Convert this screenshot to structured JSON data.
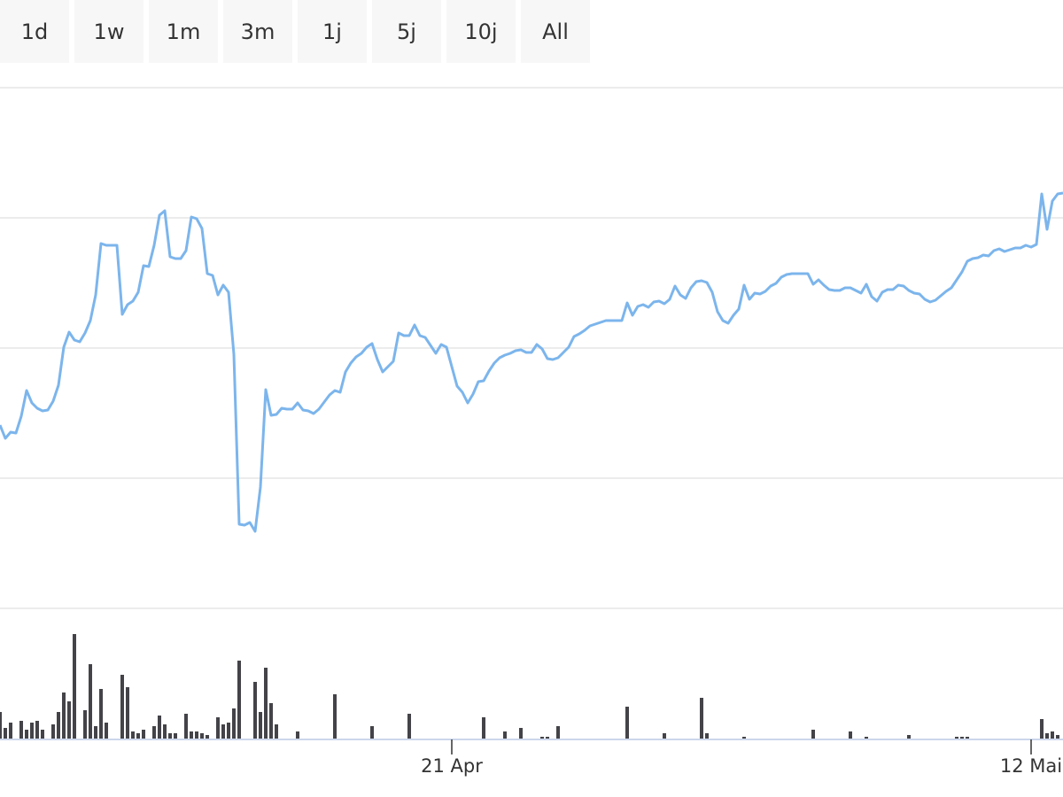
{
  "range_buttons": [
    "1d",
    "1w",
    "1m",
    "3m",
    "1j",
    "5j",
    "10j",
    "All"
  ],
  "chart_data": {
    "type": "line",
    "categories": [
      null,
      null,
      null,
      null,
      null,
      null,
      null,
      null,
      null,
      null,
      null,
      null,
      null,
      null,
      null,
      null,
      null,
      null,
      null,
      null,
      null,
      null,
      null,
      null,
      null,
      null,
      null,
      null,
      null,
      null,
      null,
      null,
      null,
      null,
      null,
      null,
      null,
      null,
      null,
      null,
      null,
      null,
      null,
      null,
      null,
      null,
      null,
      null,
      null,
      null,
      null,
      null,
      null,
      null,
      null,
      null,
      null,
      null,
      null,
      null,
      null,
      null,
      null,
      null,
      null,
      null,
      null,
      null,
      null,
      null,
      null,
      null,
      null,
      null,
      null,
      null,
      null,
      null,
      null,
      null,
      null,
      null,
      null,
      null,
      null,
      "21 Apr",
      null,
      null,
      null,
      null,
      null,
      null,
      null,
      null,
      null,
      null,
      null,
      null,
      null,
      null,
      null,
      null,
      null,
      null,
      null,
      null,
      null,
      null,
      null,
      null,
      null,
      null,
      null,
      null,
      null,
      null,
      null,
      null,
      null,
      null,
      null,
      null,
      null,
      null,
      null,
      null,
      null,
      null,
      null,
      null,
      null,
      null,
      null,
      null,
      null,
      null,
      null,
      null,
      null,
      null,
      null,
      null,
      null,
      null,
      null,
      null,
      null,
      null,
      null,
      null,
      null,
      null,
      null,
      null,
      null,
      null,
      null,
      null,
      null,
      null,
      null,
      null,
      null,
      null,
      null,
      null,
      null,
      null,
      null,
      null,
      null,
      null,
      null,
      null,
      null,
      null,
      null,
      null,
      null,
      null,
      null,
      null,
      null,
      null,
      null,
      null,
      null,
      null,
      null,
      null,
      null,
      null,
      null,
      null,
      "12 Mai",
      null,
      null,
      null,
      null,
      null,
      null
    ],
    "ylim": [
      0,
      588
    ],
    "yticks": [
      0,
      147,
      294,
      441,
      588
    ],
    "y2lim": [
      0,
      147
    ],
    "grid": true,
    "series": [
      {
        "color": "#7cb5ec",
        "values": [
          207,
          192,
          199,
          198,
          217,
          246,
          232,
          226,
          223,
          224,
          234,
          252,
          295,
          312,
          303,
          301,
          311,
          325,
          354,
          412,
          410,
          410,
          410,
          332,
          343,
          347,
          357,
          387,
          386,
          410,
          444,
          449,
          397,
          395,
          395,
          404,
          442,
          440,
          429,
          378,
          376,
          354,
          365,
          357,
          287,
          95,
          94,
          97,
          87,
          137,
          247,
          218,
          219,
          226,
          225,
          225,
          232,
          224,
          223,
          220,
          225,
          233,
          241,
          246,
          244,
          267,
          277,
          284,
          288,
          295,
          299,
          281,
          267,
          273,
          279,
          311,
          308,
          308,
          320,
          308,
          306,
          297,
          288,
          298,
          295,
          273,
          251,
          244,
          232,
          242,
          256,
          257,
          268,
          277,
          283,
          286,
          288,
          291,
          292,
          289,
          289,
          298,
          293,
          282,
          281,
          283,
          289,
          295,
          307,
          310,
          314,
          319,
          321,
          323,
          325,
          325,
          325,
          325,
          345,
          331,
          341,
          343,
          340,
          346,
          347,
          344,
          349,
          364,
          354,
          350,
          362,
          369,
          370,
          368,
          357,
          335,
          325,
          322,
          331,
          338,
          365,
          349,
          356,
          355,
          358,
          364,
          367,
          374,
          377,
          378,
          378,
          378,
          378,
          366,
          371,
          365,
          360,
          359,
          359,
          362,
          362,
          359,
          356,
          366,
          352,
          347,
          357,
          360,
          360,
          365,
          364,
          359,
          356,
          355,
          349,
          346,
          348,
          353,
          358,
          362,
          371,
          380,
          392,
          395,
          396,
          399,
          398,
          404,
          406,
          403,
          405,
          407,
          407,
          410,
          408,
          411,
          468,
          428,
          460,
          468,
          469
        ]
      },
      {
        "type": "bar",
        "axis": "y2",
        "color": "#434348",
        "values": [
          30,
          12,
          18,
          null,
          20,
          10,
          18,
          20,
          10,
          null,
          16,
          30,
          52,
          42,
          118,
          null,
          32,
          84,
          14,
          56,
          18,
          null,
          null,
          72,
          58,
          8,
          6,
          10,
          null,
          14,
          26,
          16,
          6,
          6,
          null,
          28,
          8,
          8,
          6,
          4,
          null,
          24,
          16,
          18,
          34,
          88,
          null,
          null,
          64,
          30,
          80,
          40,
          16,
          null,
          null,
          null,
          8,
          null,
          null,
          null,
          null,
          null,
          null,
          50,
          null,
          null,
          null,
          null,
          null,
          null,
          14,
          null,
          null,
          null,
          null,
          null,
          null,
          28,
          null,
          null,
          null,
          null,
          null,
          null,
          null,
          null,
          null,
          null,
          null,
          null,
          null,
          24,
          null,
          null,
          null,
          8,
          null,
          null,
          12,
          null,
          null,
          null,
          2,
          2,
          null,
          14,
          null,
          null,
          null,
          null,
          null,
          null,
          null,
          null,
          null,
          null,
          null,
          null,
          36,
          null,
          null,
          null,
          null,
          null,
          null,
          6,
          null,
          null,
          null,
          null,
          null,
          null,
          46,
          6,
          null,
          null,
          null,
          null,
          null,
          null,
          2,
          null,
          null,
          null,
          null,
          null,
          null,
          null,
          null,
          null,
          null,
          null,
          null,
          10,
          null,
          null,
          null,
          null,
          null,
          null,
          8,
          null,
          null,
          2,
          null,
          null,
          null,
          null,
          null,
          null,
          null,
          4,
          null,
          null,
          null,
          null,
          null,
          null,
          null,
          null,
          2,
          2,
          2,
          null,
          null,
          null,
          null,
          null,
          null,
          null,
          null,
          null,
          null,
          null,
          null,
          null,
          22,
          6,
          8,
          4,
          null
        ]
      }
    ]
  }
}
